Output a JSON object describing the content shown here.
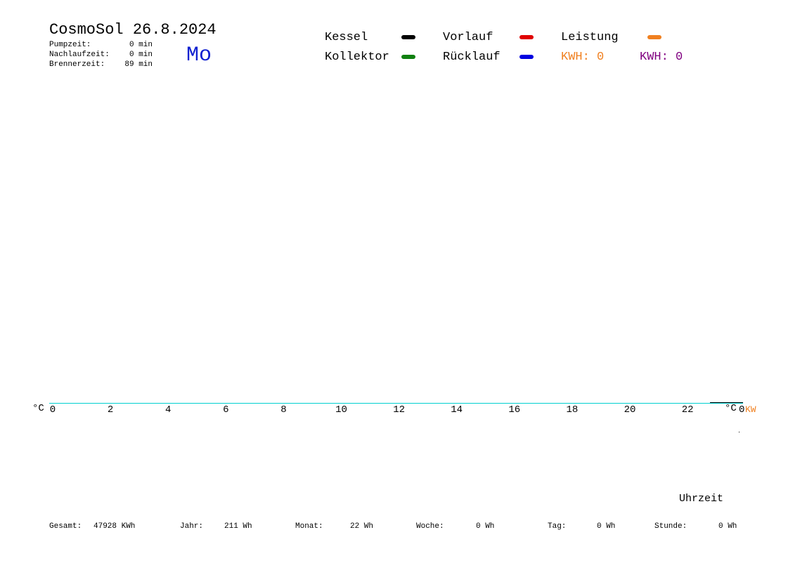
{
  "header": {
    "title": "CosmoSol 26.8.2024",
    "day": "Mo",
    "stats": [
      {
        "label": "Pumpzeit:",
        "value": "0 min"
      },
      {
        "label": "Nachlaufzeit:",
        "value": "0 min"
      },
      {
        "label": "Brennerzeit:",
        "value": "89 min"
      }
    ]
  },
  "legend": {
    "items": [
      {
        "label": "Kessel",
        "color": "#000000"
      },
      {
        "label": "Vorlauf",
        "color": "#e00000"
      },
      {
        "label": "Leistung",
        "color": "#f08020"
      },
      {
        "label": "Kollektor",
        "color": "#108010"
      },
      {
        "label": "Rücklauf",
        "color": "#0000e0"
      }
    ],
    "kwh": [
      {
        "text": "KWH: 0",
        "color": "#f08020"
      },
      {
        "text": "KWH: 0",
        "color": "#800080"
      }
    ]
  },
  "axis": {
    "left_unit": "°C",
    "right_unit": "°C",
    "right_value": "0",
    "right_kw": "KW",
    "x_label": "Uhrzeit",
    "x_labels": [
      "0",
      "2",
      "4",
      "6",
      "8",
      "10",
      "12",
      "14",
      "16",
      "18",
      "20",
      "22"
    ]
  },
  "footer": [
    {
      "label": "Gesamt:",
      "value": "47928 KWh"
    },
    {
      "label": "Jahr:",
      "value": "211 Wh"
    },
    {
      "label": "Monat:",
      "value": "22 Wh"
    },
    {
      "label": "Woche:",
      "value": "0 Wh"
    },
    {
      "label": "Tag:",
      "value": "0 Wh"
    },
    {
      "label": "Stunde:",
      "value": "0 Wh"
    }
  ]
}
